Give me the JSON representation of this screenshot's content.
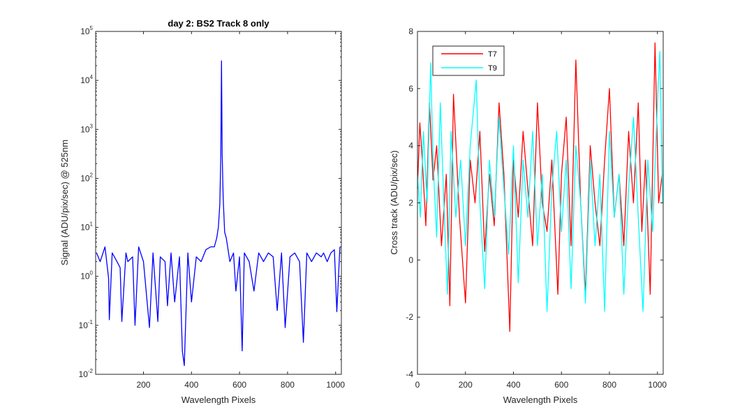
{
  "chart_data": [
    {
      "type": "line",
      "title": "day 2: BS2   Track 8 only",
      "xlabel": "Wavelength Pixels",
      "ylabel": "Signal (ADU/pix/sec) @ 525nm",
      "xlim": [
        1,
        1024
      ],
      "ylim": [
        0.01,
        100000
      ],
      "yscale": "log",
      "xticks": [
        200,
        400,
        600,
        800,
        1000
      ],
      "yticks": [
        0.01,
        0.1,
        1,
        10,
        100,
        1000,
        10000,
        100000
      ],
      "ytick_labels": [
        {
          "base": "10",
          "exp": "-2"
        },
        {
          "base": "10",
          "exp": "-1"
        },
        {
          "base": "10",
          "exp": "0"
        },
        {
          "base": "10",
          "exp": "1"
        },
        {
          "base": "10",
          "exp": "2"
        },
        {
          "base": "10",
          "exp": "3"
        },
        {
          "base": "10",
          "exp": "4"
        },
        {
          "base": "10",
          "exp": "5"
        }
      ],
      "grid": false,
      "series": [
        {
          "color": "#0000ff",
          "description": "noisy baseline ~1-5 with deep dips, single sharp peak near pixel 525",
          "x": [
            5,
            20,
            40,
            55,
            58,
            70,
            90,
            103,
            110,
            127,
            135,
            155,
            165,
            180,
            200,
            225,
            240,
            260,
            270,
            290,
            300,
            315,
            330,
            350,
            362,
            370,
            385,
            400,
            420,
            440,
            460,
            480,
            495,
            505,
            512,
            518,
            522,
            525,
            528,
            532,
            538,
            545,
            560,
            575,
            585,
            600,
            611,
            620,
            640,
            660,
            680,
            700,
            720,
            740,
            757,
            775,
            790,
            810,
            830,
            850,
            866,
            880,
            900,
            920,
            940,
            950,
            965,
            980,
            995,
            1005,
            1018
          ],
          "y": [
            3,
            2,
            4,
            0.9,
            0.13,
            3,
            2,
            1.5,
            0.12,
            3,
            2,
            2.5,
            0.1,
            4,
            2,
            0.09,
            3,
            0.12,
            2.5,
            2,
            0.25,
            3,
            0.3,
            2.5,
            0.03,
            0.015,
            3,
            0.3,
            2.5,
            2,
            3.5,
            4,
            4,
            6,
            10,
            30,
            300,
            25000,
            300,
            40,
            8,
            6,
            2,
            3,
            0.5,
            2.5,
            0.03,
            3,
            2,
            0.5,
            3,
            2,
            3,
            2.5,
            0.2,
            3,
            0.09,
            2.5,
            3,
            2,
            0.045,
            3,
            2,
            3,
            2.5,
            3,
            2,
            3,
            3.5,
            0.19,
            4
          ]
        }
      ]
    },
    {
      "type": "line",
      "title": "",
      "xlabel": "Wavelength Pixels",
      "ylabel": "Cross track (ADU/pix/sec)",
      "xlim": [
        0,
        1024
      ],
      "ylim": [
        -4,
        8
      ],
      "xticks": [
        0,
        200,
        400,
        600,
        800,
        1000
      ],
      "yticks": [
        -4,
        -2,
        0,
        2,
        4,
        6,
        8
      ],
      "grid": false,
      "legend_position": "top-left",
      "series": [
        {
          "name": "T7",
          "color": "#ff0000",
          "x": [
            0,
            10,
            20,
            35,
            50,
            65,
            80,
            100,
            120,
            135,
            150,
            175,
            200,
            220,
            240,
            260,
            280,
            300,
            320,
            340,
            360,
            385,
            400,
            420,
            440,
            460,
            480,
            500,
            520,
            540,
            560,
            585,
            600,
            620,
            640,
            660,
            680,
            700,
            720,
            740,
            760,
            780,
            800,
            820,
            840,
            860,
            880,
            900,
            920,
            935,
            950,
            970,
            990,
            1005,
            1020
          ],
          "y": [
            2.5,
            4.8,
            3.5,
            1.2,
            5.5,
            2.8,
            4,
            0.5,
            3,
            -1.6,
            5.8,
            1.5,
            -1.5,
            3.5,
            2,
            4.5,
            0.3,
            3,
            1.2,
            5.5,
            3,
            -2.5,
            3.5,
            1.5,
            4.5,
            2.5,
            0.5,
            5.5,
            2,
            1,
            3.5,
            -1.2,
            3,
            5,
            0.5,
            7,
            2,
            -1.2,
            4,
            2,
            0.5,
            3.5,
            6,
            1.5,
            3,
            0.5,
            4.5,
            2,
            5.5,
            1,
            3.5,
            -1.2,
            7.6,
            2,
            3
          ]
        },
        {
          "name": "T9",
          "color": "#00ffff",
          "x": [
            0,
            12,
            25,
            40,
            55,
            65,
            80,
            95,
            110,
            125,
            140,
            160,
            180,
            200,
            220,
            245,
            260,
            280,
            300,
            320,
            340,
            360,
            380,
            400,
            420,
            440,
            460,
            480,
            500,
            520,
            540,
            560,
            580,
            600,
            620,
            640,
            660,
            680,
            700,
            720,
            740,
            760,
            780,
            800,
            820,
            840,
            860,
            880,
            900,
            920,
            940,
            960,
            980,
            1000,
            1010,
            1022
          ],
          "y": [
            3,
            1.5,
            4.5,
            2,
            6.9,
            3.5,
            0.8,
            5.5,
            2,
            -1.2,
            4.5,
            1.5,
            3.5,
            0.5,
            4,
            6.3,
            2,
            -1,
            3.5,
            1.5,
            5,
            2.5,
            0.2,
            4,
            -0.8,
            3.5,
            1.5,
            4.5,
            0.5,
            3,
            -1.8,
            2.5,
            4.5,
            1,
            3.5,
            -1,
            4,
            2,
            -1.5,
            3.5,
            0.5,
            3,
            -1.8,
            4.5,
            1.5,
            3,
            -1.2,
            2.5,
            5,
            1.5,
            -1.8,
            3.5,
            1,
            5.5,
            7.3,
            2
          ]
        }
      ]
    }
  ]
}
